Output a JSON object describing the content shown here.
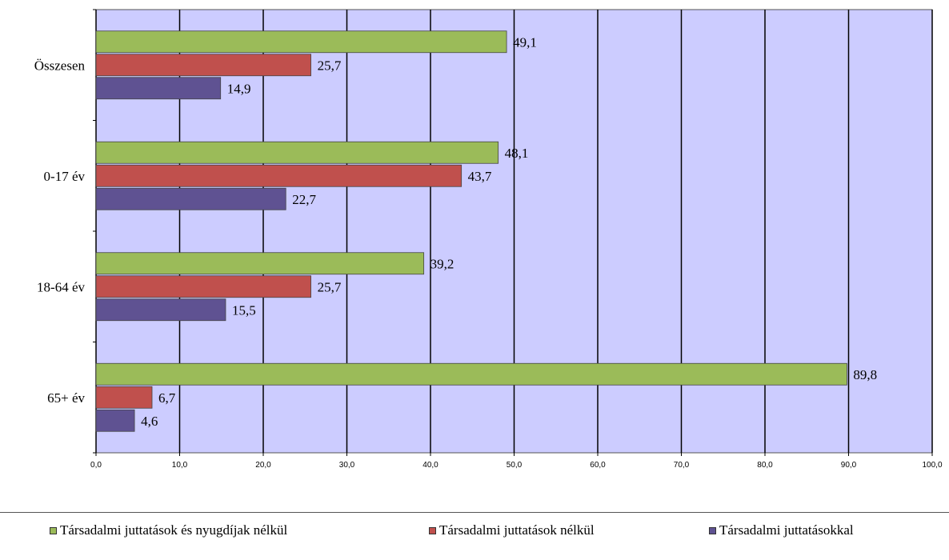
{
  "chart_data": {
    "type": "bar",
    "orientation": "horizontal",
    "categories": [
      "Összesen",
      "0-17 év",
      "18-64 év",
      "65+ év"
    ],
    "series": [
      {
        "name": "Társadalmi juttatások és nyugdíjak nélkül",
        "color": "#9bbb59",
        "values": [
          49.1,
          48.1,
          39.2,
          89.8
        ],
        "labels": [
          "49,1",
          "48,1",
          "39,2",
          "89,8"
        ]
      },
      {
        "name": "Társadalmi juttatások nélkül",
        "color": "#c0504d",
        "values": [
          25.7,
          43.7,
          25.7,
          6.7
        ],
        "labels": [
          "25,7",
          "43,7",
          "25,7",
          "6,7"
        ]
      },
      {
        "name": "Társadalmi juttatásokkal",
        "color": "#5f5292",
        "values": [
          14.9,
          22.7,
          15.5,
          4.6
        ],
        "labels": [
          "14,9",
          "22,7",
          "15,5",
          "4,6"
        ]
      }
    ],
    "xlim": [
      0,
      100
    ],
    "x_ticks": [
      "0,0",
      "10,0",
      "20,0",
      "30,0",
      "40,0",
      "50,0",
      "60,0",
      "70,0",
      "80,0",
      "90,0",
      "100,0"
    ],
    "plot_background": "#ccccff",
    "grid": true,
    "legend_position": "bottom"
  }
}
